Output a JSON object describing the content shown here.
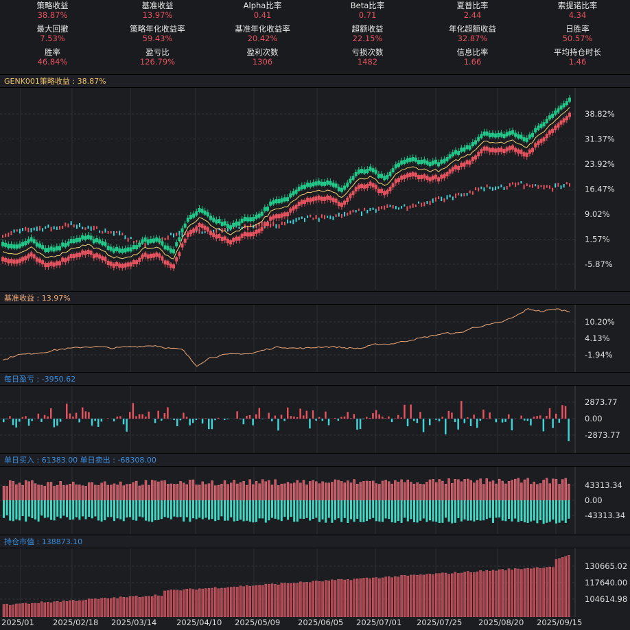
{
  "stats": [
    {
      "label": "策略收益",
      "value": "38.87%"
    },
    {
      "label": "基准收益",
      "value": "13.97%"
    },
    {
      "label": "Alpha比率",
      "value": "0.41"
    },
    {
      "label": "Beta比率",
      "value": "0.71"
    },
    {
      "label": "夏普比率",
      "value": "2.44"
    },
    {
      "label": "索提诺比率",
      "value": "4.34"
    },
    {
      "label": "最大回撤",
      "value": "7.53%"
    },
    {
      "label": "策略年化收益率",
      "value": "59.43%"
    },
    {
      "label": "基准年化收益率",
      "value": "20.42%"
    },
    {
      "label": "超额收益",
      "value": "22.15%"
    },
    {
      "label": "年化超额收益",
      "value": "32.87%"
    },
    {
      "label": "日胜率",
      "value": "50.57%"
    },
    {
      "label": "胜率",
      "value": "46.84%"
    },
    {
      "label": "盈亏比",
      "value": "126.79%"
    },
    {
      "label": "盈利次数",
      "value": "1306"
    },
    {
      "label": "亏损次数",
      "value": "1482"
    },
    {
      "label": "信息比率",
      "value": "1.66"
    },
    {
      "label": "平均持仓时长",
      "value": "1.46"
    }
  ],
  "headers": {
    "strategy": "GENK001策略收益 : 38.87%",
    "benchmark": "基准收益 : 13.97%",
    "pnl": "每日盈亏 : -3950.62",
    "buysell": "单日买入 : 61383.00  单日卖出 : -68308.00",
    "holdings": "持仓市值 : 138873.10"
  },
  "colors": {
    "up": "#e5535f",
    "down": "#22c88a",
    "bench": "#3fd3d8",
    "line": "#f0a878",
    "blue": "#3a8fe0"
  },
  "chart_data": [
    {
      "type": "line",
      "title": "GENK001策略收益",
      "ylabel_ticks": [
        "38.82%",
        "31.37%",
        "23.92%",
        "16.47%",
        "9.02%",
        "1.57%",
        "-5.87%"
      ],
      "tick_values": [
        38.82,
        31.37,
        23.92,
        16.47,
        9.02,
        1.57,
        -5.87
      ],
      "strategy": [
        -2,
        -3,
        -1,
        -4,
        -3,
        -1,
        0,
        -2,
        -4,
        -4,
        -1,
        -1,
        -5,
        5,
        8,
        5,
        3,
        5,
        6,
        10,
        11,
        15,
        16,
        16,
        14,
        19,
        20,
        17,
        22,
        23,
        22,
        22,
        25,
        27,
        31,
        30,
        31,
        29,
        33,
        37,
        41
      ],
      "benchmark": [
        3,
        4,
        5,
        5,
        6,
        5,
        4,
        3,
        0,
        1,
        3,
        4,
        4,
        5,
        5,
        6,
        6,
        7,
        8,
        8,
        9,
        10,
        11,
        11,
        12,
        13,
        14,
        15,
        17,
        17,
        18,
        17,
        17,
        18
      ]
    },
    {
      "type": "line",
      "title": "基准收益",
      "ylabel_ticks": [
        "10.20%",
        "4.13%",
        "-1.94%"
      ],
      "tick_values": [
        10.2,
        4.13,
        -1.94
      ],
      "values": [
        -4,
        -2,
        -1.5,
        -1,
        0,
        0.5,
        1,
        1,
        0.5,
        1,
        1.2,
        1.5,
        0.5,
        0,
        -6,
        -3,
        -2,
        -1.5,
        -1.5,
        0,
        1,
        0.5,
        0.5,
        1,
        1,
        0.5,
        0.5,
        2,
        2,
        3,
        4,
        5,
        6,
        6,
        8,
        9,
        10,
        12,
        15,
        14,
        15,
        14
      ]
    },
    {
      "type": "bar",
      "title": "每日盈亏",
      "ylabel_ticks": [
        "2873.77",
        "0.00",
        "-2873.77"
      ],
      "tick_values": [
        2873.77,
        0,
        -2873.77
      ],
      "ylim": [
        -5000,
        5000
      ]
    },
    {
      "type": "bar",
      "title": "单日买入/单日卖出",
      "ylabel_ticks": [
        "43313.34",
        "0.00",
        "-43313.34"
      ],
      "tick_values": [
        43313.34,
        0,
        -43313.34
      ],
      "ylim": [
        -65000,
        65000
      ]
    },
    {
      "type": "bar",
      "title": "持仓市值",
      "ylabel_ticks": [
        "130665.02",
        "117640.00",
        "104614.98"
      ],
      "tick_values": [
        130665.02,
        117640,
        104614.98
      ],
      "ylim": [
        95000,
        142000
      ]
    }
  ],
  "x_labels": [
    "2025/01",
    "2025/02/18",
    "2025/03/14",
    "2025/04/10",
    "2025/05/09",
    "2025/06/05",
    "2025/07/01",
    "2025/07/25",
    "2025/08/20",
    "2025/09/15"
  ]
}
